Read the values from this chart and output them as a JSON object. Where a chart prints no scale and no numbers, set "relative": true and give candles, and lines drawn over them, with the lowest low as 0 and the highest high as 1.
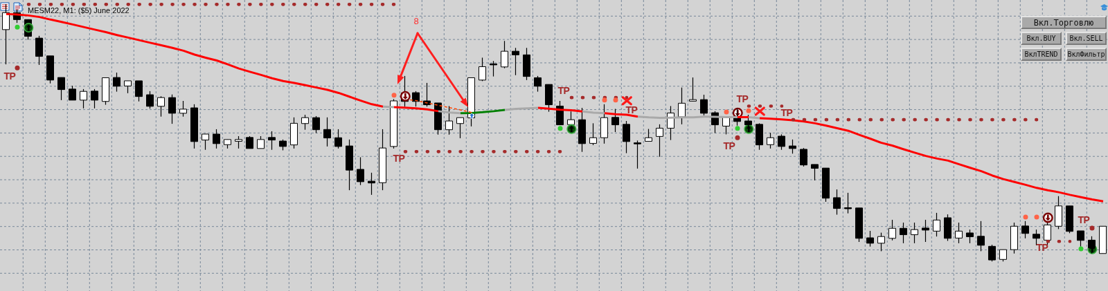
{
  "chart_data": {
    "type": "candlestick",
    "title": "MESM22, M1: ($5) June 2022",
    "relative": true,
    "grid": true,
    "tick_labels": false,
    "categories": [
      null,
      null,
      null,
      null,
      null,
      null,
      null,
      null,
      null,
      null,
      null,
      null,
      null,
      null,
      null,
      null,
      null,
      null,
      null,
      null,
      null,
      null,
      null,
      null,
      null,
      null,
      null,
      null,
      null,
      null,
      null,
      null,
      null,
      null,
      null,
      null,
      null,
      null,
      null,
      null,
      null,
      null,
      null,
      null,
      null,
      null,
      null,
      null,
      null,
      null,
      null,
      null,
      null,
      null,
      null,
      null,
      null,
      null,
      null,
      null,
      null,
      null,
      null,
      null,
      null,
      null,
      null,
      null,
      null,
      null,
      null,
      null,
      null,
      null,
      null,
      null,
      null,
      null,
      null,
      null,
      null,
      null,
      null,
      null,
      null,
      null,
      null,
      null,
      null,
      null,
      null,
      null,
      null,
      null,
      null,
      null,
      null,
      null,
      null,
      null
    ],
    "ohlc": [
      [
        0.901,
        1,
        0.766,
        0.967
      ],
      [
        0.967,
        0.979,
        0.927,
        0.94
      ],
      [
        0.94,
        0.941,
        0.862,
        0.875
      ],
      [
        0.868,
        0.877,
        0.764,
        0.797
      ],
      [
        0.799,
        0.799,
        0.692,
        0.705
      ],
      [
        0.715,
        0.715,
        0.627,
        0.668
      ],
      [
        0.67,
        0.683,
        0.627,
        0.627
      ],
      [
        0.627,
        0.67,
        0.595,
        0.661
      ],
      [
        0.662,
        0.67,
        0.595,
        0.627
      ],
      [
        0.622,
        0.714,
        0.609,
        0.714
      ],
      [
        0.715,
        0.734,
        0.66,
        0.681
      ],
      [
        0.682,
        0.702,
        0.654,
        0.702
      ],
      [
        0.702,
        0.702,
        0.622,
        0.641
      ],
      [
        0.648,
        0.662,
        0.594,
        0.603
      ],
      [
        0.603,
        0.642,
        0.563,
        0.637
      ],
      [
        0.637,
        0.649,
        0.535,
        0.576
      ],
      [
        0.576,
        0.624,
        0.563,
        0.592
      ],
      [
        0.597,
        0.611,
        0.439,
        0.466
      ],
      [
        0.472,
        0.495,
        0.434,
        0.495
      ],
      [
        0.495,
        0.514,
        0.439,
        0.458
      ],
      [
        0.454,
        0.474,
        0.439,
        0.474
      ],
      [
        0.467,
        0.487,
        0.439,
        0.474
      ],
      [
        0.482,
        0.487,
        0.439,
        0.439
      ],
      [
        0.439,
        0.487,
        0.439,
        0.474
      ],
      [
        0.482,
        0.506,
        0.434,
        0.472
      ],
      [
        0.468,
        0.474,
        0.432,
        0.447
      ],
      [
        0.453,
        0.56,
        0.439,
        0.537
      ],
      [
        0.536,
        0.57,
        0.512,
        0.559
      ],
      [
        0.559,
        0.565,
        0.499,
        0.512
      ],
      [
        0.513,
        0.56,
        0.447,
        0.48
      ],
      [
        0.481,
        0.514,
        0.439,
        0.447
      ],
      [
        0.449,
        0.474,
        0.277,
        0.355
      ],
      [
        0.358,
        0.405,
        0.297,
        0.31
      ],
      [
        0.312,
        0.345,
        0.259,
        0.305
      ],
      [
        0.306,
        0.514,
        0.277,
        0.441
      ],
      [
        0.447,
        0.631,
        0.439,
        0.624
      ],
      [
        0.655,
        0.721,
        0.602,
        0.622
      ],
      [
        0.656,
        0.662,
        0.602,
        0.622
      ],
      [
        0.624,
        0.694,
        0.602,
        0.609
      ],
      [
        0.616,
        0.616,
        0.493,
        0.512
      ],
      [
        0.512,
        0.604,
        0.493,
        0.546
      ],
      [
        0.536,
        0.559,
        0.479,
        0.559
      ],
      [
        0.558,
        0.714,
        0.525,
        0.714
      ],
      [
        0.705,
        0.792,
        0.701,
        0.757
      ],
      [
        0.766,
        0.779,
        0.719,
        0.766
      ],
      [
        0.756,
        0.857,
        0.751,
        0.817
      ],
      [
        0.817,
        0.83,
        0.724,
        0.803
      ],
      [
        0.803,
        0.83,
        0.705,
        0.719
      ],
      [
        0.714,
        0.721,
        0.66,
        0.681
      ],
      [
        0.688,
        0.688,
        0.582,
        0.609
      ],
      [
        0.604,
        0.624,
        0.531,
        0.531
      ],
      [
        0.532,
        0.583,
        0.532,
        0.551
      ],
      [
        0.551,
        0.597,
        0.426,
        0.458
      ],
      [
        0.459,
        0.537,
        0.452,
        0.481
      ],
      [
        0.481,
        0.611,
        0.458,
        0.559
      ],
      [
        0.56,
        0.593,
        0.503,
        0.531
      ],
      [
        0.533,
        0.546,
        0.421,
        0.466
      ],
      [
        0.459,
        0.47,
        0.361,
        0.459
      ],
      [
        0.467,
        0.515,
        0.467,
        0.481
      ],
      [
        0.486,
        0.533,
        0.407,
        0.518
      ],
      [
        0.518,
        0.604,
        0.472,
        0.577
      ],
      [
        0.562,
        0.676,
        0.533,
        0.615
      ],
      [
        0.623,
        0.715,
        0.623,
        0.629
      ],
      [
        0.629,
        0.648,
        0.568,
        0.576
      ],
      [
        0.578,
        0.584,
        0.499,
        0.531
      ],
      [
        0.526,
        0.563,
        0.494,
        0.563
      ],
      [
        0.56,
        0.594,
        0.528,
        0.544
      ],
      [
        0.546,
        0.57,
        0.517,
        0.531
      ],
      [
        0.533,
        0.537,
        0.434,
        0.453
      ],
      [
        0.454,
        0.5,
        0.439,
        0.481
      ],
      [
        0.487,
        0.494,
        0.434,
        0.447
      ],
      [
        0.449,
        0.474,
        0.419,
        0.439
      ],
      [
        0.436,
        0.441,
        0.369,
        0.375
      ],
      [
        0.377,
        0.377,
        0.315,
        0.362
      ],
      [
        0.363,
        0.363,
        0.232,
        0.246
      ],
      [
        0.248,
        0.28,
        0.182,
        0.206
      ],
      [
        0.207,
        0.267,
        0.187,
        0.207
      ],
      [
        0.208,
        0.208,
        0.076,
        0.09
      ],
      [
        0.092,
        0.119,
        0.058,
        0.071
      ],
      [
        0.071,
        0.112,
        0.04,
        0.097
      ],
      [
        0.09,
        0.162,
        0.082,
        0.129
      ],
      [
        0.129,
        0.151,
        0.071,
        0.104
      ],
      [
        0.104,
        0.151,
        0.071,
        0.124
      ],
      [
        0.13,
        0.162,
        0.076,
        0.122
      ],
      [
        0.118,
        0.189,
        0.097,
        0.161
      ],
      [
        0.17,
        0.183,
        0.08,
        0.09
      ],
      [
        0.091,
        0.151,
        0.071,
        0.118
      ],
      [
        0.111,
        0.124,
        0.071,
        0.096
      ],
      [
        0.098,
        0.157,
        0.04,
        0.063
      ],
      [
        0.059,
        0.065,
        0,
        0.006
      ],
      [
        0.008,
        0.046,
        0,
        0.046
      ],
      [
        0.046,
        0.151,
        0.031,
        0.137
      ],
      [
        0.138,
        0.157,
        0.09,
        0.109
      ],
      [
        0.106,
        0.124,
        0.063,
        0.09
      ],
      [
        0.083,
        0.151,
        0.065,
        0.142
      ],
      [
        0.137,
        0.254,
        0.126,
        0.216
      ],
      [
        0.216,
        0.216,
        0.11,
        0.117
      ],
      [
        0.119,
        0.119,
        0.058,
        0.082
      ],
      [
        0.083,
        0.098,
        0.031,
        0.053
      ],
      [
        0.031,
        0.137,
        0.031,
        0.137
      ]
    ],
    "series": [
      {
        "type": "line",
        "color": "#ff0000",
        "values": [
          0.962,
          0.96,
          0.956,
          0.95,
          0.94,
          0.931,
          0.921,
          0.911,
          0.901,
          0.891,
          0.88,
          0.87,
          0.86,
          0.85,
          0.84,
          0.83,
          0.819,
          0.804,
          0.792,
          0.781,
          0.766,
          0.75,
          0.737,
          0.725,
          0.712,
          0.701,
          0.694,
          0.685,
          0.676,
          0.667,
          0.655,
          0.64,
          0.625,
          0.611,
          0.602,
          null,
          null,
          null,
          null,
          null,
          null,
          null,
          null,
          null,
          null,
          null,
          null,
          null,
          0.597,
          0.594,
          0.59,
          0.588,
          0.583,
          null,
          null,
          null,
          null,
          null,
          null,
          null,
          null,
          null,
          null,
          null,
          null,
          null,
          0.561,
          0.561,
          null,
          null,
          null,
          null,
          null,
          null,
          null,
          null,
          null,
          null,
          null,
          null,
          null,
          null,
          null,
          null,
          null,
          null,
          null,
          null,
          null,
          null,
          null,
          null,
          null,
          null,
          null,
          null,
          null,
          null,
          null,
          null
        ]
      },
      {
        "type": "line",
        "color": "#fe0000",
        "values": [
          null,
          null,
          null,
          null,
          null,
          null,
          null,
          null,
          null,
          null,
          null,
          null,
          null,
          null,
          null,
          null,
          null,
          null,
          null,
          null,
          null,
          null,
          null,
          null,
          null,
          null,
          null,
          null,
          null,
          null,
          null,
          null,
          null,
          null,
          null,
          0.6,
          0.598,
          0.595,
          0.591,
          0.584,
          null,
          null,
          null,
          null,
          null,
          null,
          null,
          null,
          null,
          null,
          null,
          null,
          null,
          null,
          0.576,
          0.572,
          0.57,
          0.563,
          null,
          null,
          null,
          null,
          null,
          null,
          null,
          null,
          null,
          null,
          0.557,
          0.555,
          0.552,
          0.549,
          0.544,
          0.537,
          0.528,
          0.518,
          0.508,
          0.492,
          0.477,
          0.461,
          0.45,
          0.436,
          0.423,
          0.41,
          0.4,
          0.392,
          0.378,
          0.364,
          0.351,
          0.334,
          0.32,
          0.309,
          0.298,
          0.286,
          0.277,
          0.269,
          0.259,
          0.25,
          0.241,
          0.234
        ]
      },
      {
        "type": "line",
        "color": "#a9a9a9",
        "values": [
          null,
          null,
          null,
          null,
          null,
          null,
          null,
          null,
          null,
          null,
          null,
          null,
          null,
          null,
          null,
          null,
          null,
          null,
          null,
          null,
          null,
          null,
          null,
          null,
          null,
          null,
          null,
          null,
          null,
          null,
          null,
          null,
          null,
          null,
          0.602,
          0.6,
          null,
          null,
          null,
          null,
          null,
          null,
          null,
          null,
          null,
          0.589,
          0.593,
          0.595,
          0.597,
          null,
          null,
          null,
          null,
          null,
          null,
          null,
          null,
          0.563,
          0.56,
          0.558,
          0.559,
          0.56,
          0.56,
          0.563,
          0.562,
          0.561,
          0.561,
          null,
          null,
          null,
          null,
          null,
          null,
          null,
          null,
          null,
          null,
          null,
          null,
          null,
          null,
          null,
          null,
          null,
          null,
          null,
          null,
          null,
          null,
          null,
          null,
          null,
          null,
          null,
          null,
          null,
          null,
          null,
          null,
          null
        ]
      },
      {
        "type": "line",
        "color": "#aaaaaa",
        "values": [
          null,
          null,
          null,
          null,
          null,
          null,
          null,
          null,
          null,
          null,
          null,
          null,
          null,
          null,
          null,
          null,
          null,
          null,
          null,
          null,
          null,
          null,
          null,
          null,
          null,
          null,
          null,
          null,
          null,
          null,
          null,
          null,
          null,
          null,
          null,
          null,
          null,
          null,
          null,
          0.584,
          0.579,
          0.576,
          null,
          null,
          null,
          null,
          null,
          null,
          null,
          null,
          null,
          null,
          0.583,
          0.578,
          0.576,
          null,
          null,
          null,
          null,
          null,
          null,
          null,
          null,
          null,
          null,
          null,
          null,
          0.561,
          0.557,
          null,
          null,
          null,
          null,
          null,
          null,
          null,
          null,
          null,
          null,
          null,
          null,
          null,
          null,
          null,
          null,
          null,
          null,
          null,
          null,
          null,
          null,
          null,
          null,
          null,
          null,
          null,
          null,
          null,
          null,
          null
        ]
      },
      {
        "type": "line",
        "color": "#008000",
        "values": [
          null,
          null,
          null,
          null,
          null,
          null,
          null,
          null,
          null,
          null,
          null,
          null,
          null,
          null,
          null,
          null,
          null,
          null,
          null,
          null,
          null,
          null,
          null,
          null,
          null,
          null,
          null,
          null,
          null,
          null,
          null,
          null,
          null,
          null,
          null,
          null,
          null,
          null,
          null,
          null,
          null,
          0.576,
          0.577,
          0.58,
          0.584,
          0.589,
          null,
          null,
          null,
          null,
          null,
          null,
          null,
          null,
          null,
          null,
          null,
          null,
          null,
          null,
          null,
          null,
          null,
          null,
          null,
          null,
          null,
          null,
          null,
          null,
          null,
          null,
          null,
          null,
          null,
          null,
          null,
          null,
          null,
          null,
          null,
          null,
          null,
          null,
          null,
          null,
          null,
          null,
          null,
          null,
          null,
          null,
          null,
          null,
          null,
          null,
          null,
          null,
          null,
          null
        ]
      },
      {
        "type": "line",
        "color": "#ff4500",
        "line_style": "dashed",
        "values": [
          null,
          null,
          null,
          null,
          null,
          null,
          null,
          null,
          null,
          null,
          null,
          null,
          null,
          null,
          null,
          null,
          null,
          null,
          null,
          null,
          null,
          null,
          null,
          null,
          null,
          null,
          null,
          null,
          null,
          null,
          null,
          null,
          null,
          null,
          null,
          null,
          0.631,
          0.625,
          0.616,
          0.607,
          0.598,
          0.589,
          0.579,
          null,
          null,
          null,
          null,
          null,
          null,
          null,
          null,
          null,
          null,
          null,
          null,
          null,
          null,
          null,
          null,
          null,
          null,
          null,
          null,
          null,
          null,
          null,
          null,
          null,
          null,
          null,
          null,
          null,
          null,
          null,
          null,
          null,
          null,
          null,
          null,
          null,
          null,
          null,
          null,
          null,
          null,
          null,
          null,
          null,
          null,
          null,
          null,
          null,
          null,
          null,
          null,
          null,
          null,
          null,
          null,
          null
        ]
      },
      {
        "type": "line",
        "color": "#a52a2a",
        "line_style": "dotted",
        "values": [
          null,
          null,
          0.999,
          0.999,
          0.999,
          0.999,
          0.999,
          0.999,
          0.999,
          0.999,
          0.999,
          0.999,
          0.999,
          0.999,
          0.999,
          0.999,
          0.999,
          0.999,
          0.999,
          0.999,
          0.999,
          0.999,
          0.999,
          0.999,
          0.999,
          0.999,
          0.999,
          0.999,
          0.999,
          0.999,
          0.999,
          0.999,
          0.999,
          0.999,
          0.999,
          0.999,
          null,
          null,
          null,
          null,
          null,
          null,
          null,
          null,
          null,
          null,
          null,
          null,
          null,
          null,
          null,
          0.637,
          0.637,
          0.637,
          0.637,
          0.637,
          0.637,
          null,
          null,
          null,
          null,
          null,
          null,
          null,
          null,
          null,
          null,
          null,
          null,
          null,
          null,
          0.551,
          0.551,
          0.551,
          0.551,
          0.551,
          0.551,
          0.551,
          0.551,
          0.551,
          0.551,
          0.551,
          0.551,
          0.551,
          0.551,
          0.551,
          0.551,
          0.551,
          0.551,
          0.551,
          0.551,
          0.551,
          0.551,
          0.551,
          null,
          null,
          null,
          null,
          null,
          null
        ]
      },
      {
        "type": "line",
        "color": "#a52a2a",
        "line_style": "dotted",
        "values": [
          null,
          null,
          null,
          null,
          null,
          null,
          null,
          null,
          null,
          null,
          null,
          null,
          null,
          null,
          null,
          null,
          null,
          null,
          null,
          null,
          null,
          null,
          null,
          null,
          null,
          null,
          null,
          null,
          null,
          null,
          null,
          null,
          null,
          null,
          null,
          null,
          0.427,
          0.427,
          0.427,
          0.427,
          0.427,
          0.427,
          0.427,
          0.427,
          0.427,
          0.427,
          0.427,
          0.427,
          0.427,
          0.427,
          0.427,
          null,
          null,
          null,
          null,
          null,
          null,
          null,
          null,
          null,
          null,
          null,
          null,
          null,
          null,
          null,
          null,
          0.604,
          0.604,
          0.604,
          0.604,
          null,
          null,
          null,
          null,
          null,
          null,
          null,
          null,
          null,
          null,
          null,
          null,
          null,
          null,
          null,
          null,
          null,
          null,
          null,
          null,
          null,
          null,
          null,
          0.078,
          0.078,
          0.078,
          null,
          null,
          null
        ]
      },
      {
        "type": "scatter",
        "color": "#32cd32",
        "marker": "circle",
        "values": [
          null,
          0.911,
          null,
          null,
          null,
          null,
          null,
          null,
          null,
          null,
          null,
          null,
          null,
          null,
          null,
          null,
          null,
          null,
          null,
          null,
          null,
          null,
          null,
          null,
          null,
          null,
          null,
          null,
          null,
          null,
          null,
          null,
          null,
          null,
          null,
          null,
          null,
          null,
          null,
          null,
          null,
          null,
          null,
          null,
          null,
          null,
          null,
          null,
          null,
          null,
          0.517,
          null,
          null,
          null,
          null,
          null,
          null,
          null,
          null,
          null,
          null,
          null,
          null,
          null,
          null,
          null,
          0.517,
          null,
          null,
          null,
          null,
          null,
          null,
          null,
          null,
          null,
          null,
          null,
          null,
          null,
          null,
          null,
          null,
          null,
          null,
          null,
          null,
          null,
          null,
          null,
          null,
          null,
          null,
          null,
          null,
          null,
          null,
          0.049,
          null,
          null
        ]
      },
      {
        "type": "scatter",
        "color": "#ff6347",
        "marker": "circle",
        "values": [
          null,
          null,
          null,
          null,
          null,
          null,
          null,
          null,
          null,
          null,
          null,
          null,
          null,
          null,
          null,
          null,
          null,
          null,
          null,
          null,
          null,
          null,
          null,
          null,
          null,
          null,
          null,
          null,
          null,
          null,
          null,
          null,
          null,
          null,
          null,
          0.646,
          null,
          null,
          null,
          null,
          null,
          null,
          null,
          null,
          null,
          null,
          null,
          null,
          null,
          null,
          null,
          null,
          null,
          null,
          0.627,
          0.627,
          null,
          null,
          null,
          null,
          null,
          null,
          null,
          null,
          null,
          0.581,
          null,
          0.586,
          null,
          null,
          null,
          null,
          null,
          null,
          null,
          null,
          null,
          null,
          null,
          null,
          null,
          null,
          null,
          null,
          null,
          null,
          null,
          null,
          null,
          null,
          null,
          null,
          0.173,
          0.173,
          null,
          null,
          null,
          null,
          null,
          null
        ]
      },
      {
        "type": "scatter",
        "color": "#a52a2a",
        "marker": "circle",
        "values": [
          null,
          0.752,
          null,
          null,
          null,
          null,
          null,
          null,
          null,
          null,
          null,
          null,
          null,
          null,
          null,
          null,
          null,
          null,
          null,
          null,
          null,
          null,
          null,
          null,
          null,
          null,
          null,
          null,
          null,
          null,
          null,
          null,
          null,
          null,
          null,
          null,
          null,
          null,
          null,
          null,
          null,
          null,
          null,
          null,
          null,
          null,
          null,
          null,
          null,
          null,
          null,
          null,
          null,
          null,
          null,
          null,
          null,
          null,
          null,
          null,
          null,
          null,
          null,
          null,
          null,
          null,
          0.481,
          null,
          null,
          null,
          null,
          null,
          null,
          null,
          null,
          null,
          null,
          null,
          null,
          null,
          null,
          null,
          null,
          null,
          null,
          null,
          null,
          null,
          null,
          null,
          null,
          null,
          null,
          null,
          null,
          null,
          null,
          null,
          0.13,
          null
        ]
      }
    ],
    "annotations": [
      "TP",
      "TP",
      "TP",
      "TP",
      "TP",
      "TP",
      "TP",
      "TP",
      "TP",
      "8",
      "Вкл.Торговлю",
      "Вкл.BUY",
      "Вкл.SELL",
      "ВклTREND",
      "ВклФильтр"
    ]
  }
}
